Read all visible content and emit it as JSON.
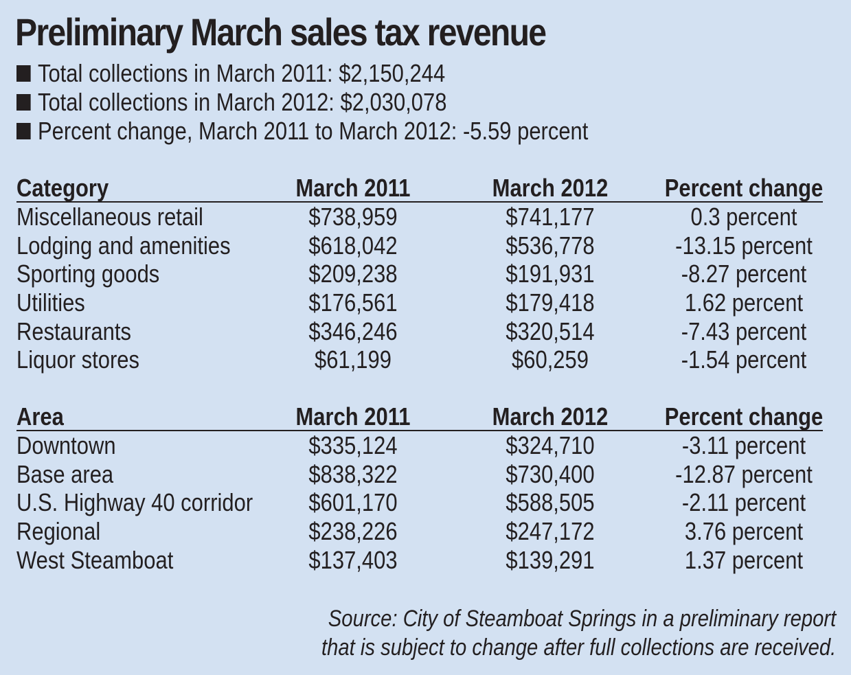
{
  "title": "Preliminary March sales tax revenue",
  "bullets": [
    "Total collections in March 2011: $2,150,244",
    "Total collections in March 2012: $2,030,078",
    "Percent change, March 2011 to March 2012: -5.59 percent"
  ],
  "chart_data": [
    {
      "type": "table",
      "columns": [
        "Category",
        "March 2011",
        "March 2012",
        "Percent change"
      ],
      "rows": [
        [
          "Miscellaneous retail",
          "$738,959",
          "$741,177",
          "0.3 percent"
        ],
        [
          "Lodging and amenities",
          "$618,042",
          "$536,778",
          "-13.15 percent"
        ],
        [
          "Sporting goods",
          "$209,238",
          "$191,931",
          "-8.27 percent"
        ],
        [
          "Utilities",
          "$176,561",
          "$179,418",
          "1.62 percent"
        ],
        [
          "Restaurants",
          "$346,246",
          "$320,514",
          "-7.43 percent"
        ],
        [
          "Liquor stores",
          "$61,199",
          "$60,259",
          "-1.54 percent"
        ]
      ]
    },
    {
      "type": "table",
      "columns": [
        "Area",
        "March 2011",
        "March 2012",
        "Percent change"
      ],
      "rows": [
        [
          "Downtown",
          "$335,124",
          "$324,710",
          "-3.11 percent"
        ],
        [
          "Base area",
          "$838,322",
          "$730,400",
          "-12.87 percent"
        ],
        [
          "U.S. Highway 40 corridor",
          "$601,170",
          "$588,505",
          "-2.11 percent"
        ],
        [
          "Regional",
          "$238,226",
          "$247,172",
          "3.76 percent"
        ],
        [
          "West Steamboat",
          "$137,403",
          "$139,291",
          "1.37 percent"
        ]
      ]
    }
  ],
  "source": [
    "Source: City of Steamboat Springs in a preliminary report",
    "that is subject to change after full collections are received."
  ]
}
